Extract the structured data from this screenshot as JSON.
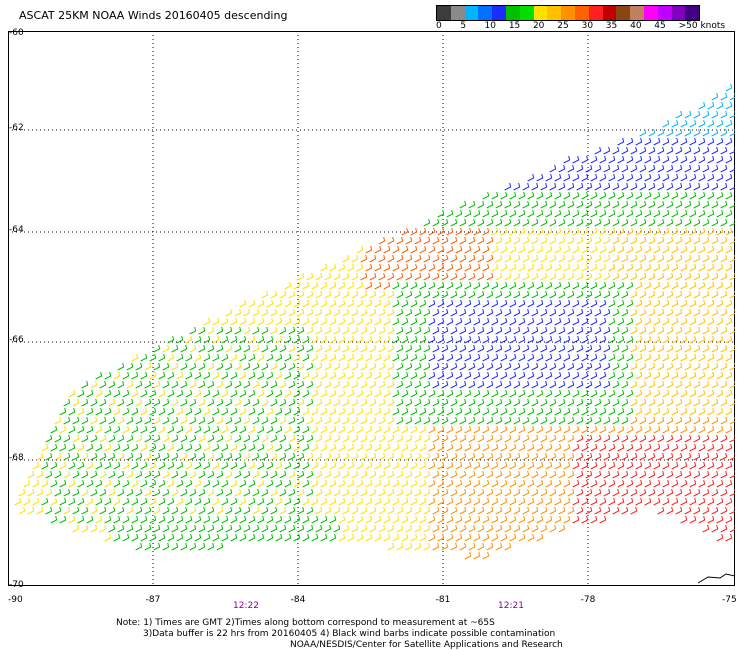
{
  "title": "ASCAT 25KM NOAA Winds 20160405 descending",
  "legend": {
    "colors": [
      "#3c3c3c",
      "#8a8a8a",
      "#00b4ff",
      "#0070ff",
      "#1e2cff",
      "#00c000",
      "#00e000",
      "#ffe000",
      "#ffc000",
      "#ff9000",
      "#ff6000",
      "#ff2020",
      "#c00000",
      "#8b4513",
      "#c08060",
      "#ff00ff",
      "#c000ff",
      "#8000c0",
      "#400080"
    ],
    "labels": [
      {
        "text": "0",
        "pos": 0
      },
      {
        "text": "5",
        "pos": 0.093
      },
      {
        "text": "10",
        "pos": 0.185
      },
      {
        "text": "15",
        "pos": 0.278
      },
      {
        "text": "20",
        "pos": 0.37
      },
      {
        "text": "25",
        "pos": 0.463
      },
      {
        "text": "30",
        "pos": 0.556
      },
      {
        "text": "35",
        "pos": 0.648
      },
      {
        "text": "40",
        "pos": 0.741
      },
      {
        "text": "45",
        "pos": 0.833
      },
      {
        "text": ">50 knots",
        "pos": 0.926
      }
    ]
  },
  "map": {
    "lat_labels": [
      "-60",
      "-62",
      "-64",
      "-66",
      "-68",
      "-70"
    ],
    "lon_labels": [
      "-90",
      "-87",
      "-84",
      "-81",
      "-78",
      "-75"
    ],
    "time_labels": [
      {
        "text": "12:22",
        "lon": -85.5
      },
      {
        "text": "12:21",
        "lon": -79.5
      }
    ]
  },
  "notes": [
    "Note: 1) Times are GMT 2)Times along bottom correspond to measurement at ~65S",
    "3)Data buffer is 22 hrs from 20160405 4) Black wind barbs indicate possible contamination",
    "NOAA/NESDIS/Center for Satellite Applications and Research"
  ]
}
